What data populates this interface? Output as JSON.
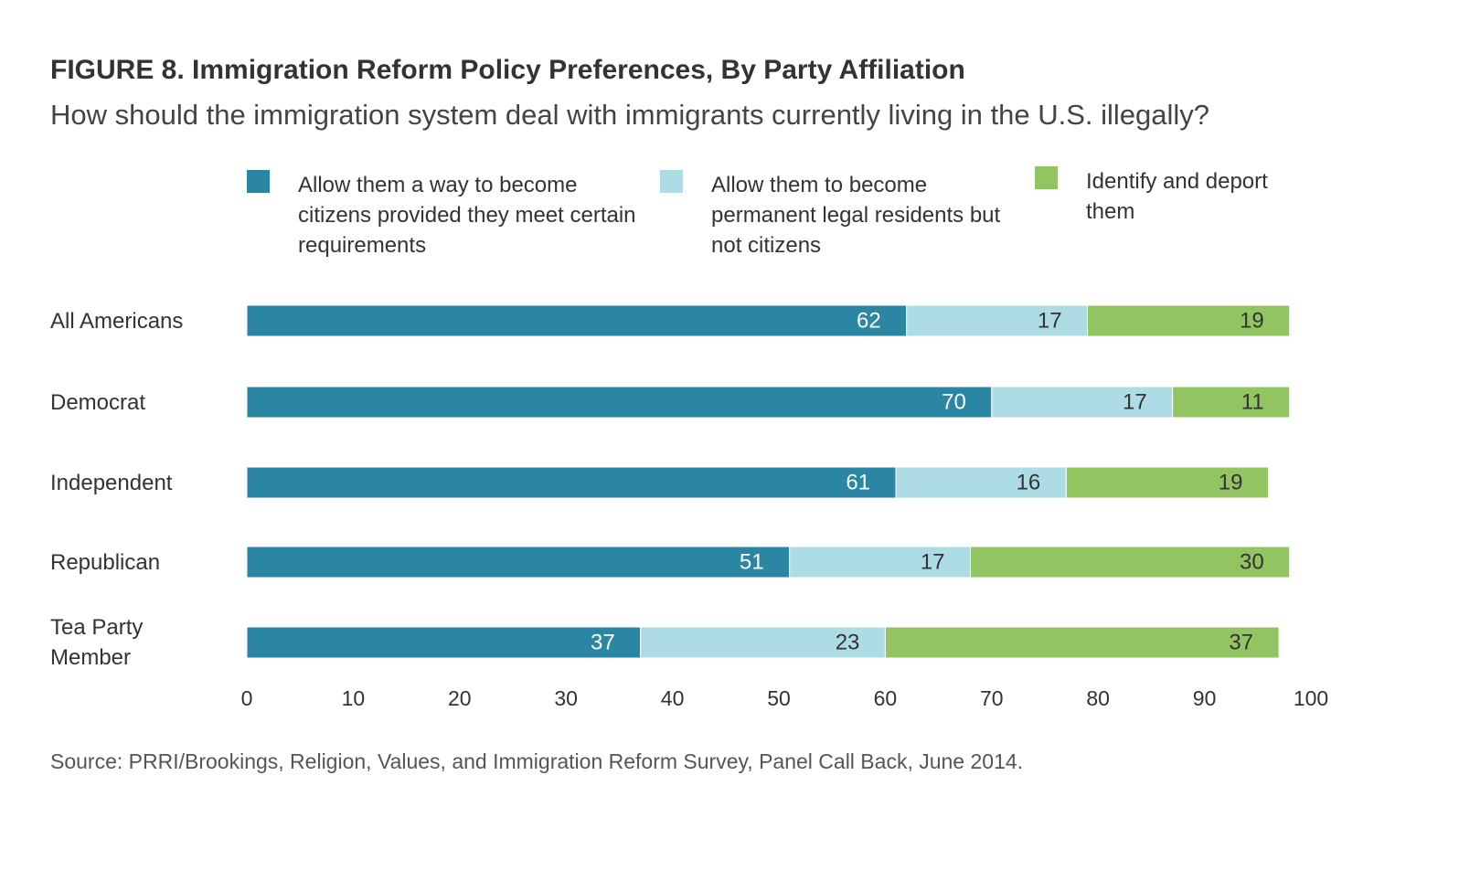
{
  "chart_data": {
    "type": "stacked-bar-horizontal",
    "title": "FIGURE 8.  Immigration Reform Policy Preferences, By Party Affiliation",
    "subtitle": "How should the immigration system deal with immigrants currently living in the U.S. illegally?",
    "source": "Source: PRRI/Brookings, Religion, Values, and Immigration Reform Survey, Panel Call Back, June 2014.",
    "categories": [
      "All Americans",
      "Democrat",
      "Independent",
      "Republican",
      "Tea Party Member"
    ],
    "series": [
      {
        "name": "Allow them a way to become citizens provided they meet certain requirements",
        "color": "#2a86a3",
        "values": [
          62,
          70,
          61,
          51,
          37
        ]
      },
      {
        "name": "Allow them to become permanent legal residents but not citizens",
        "color": "#aedce4",
        "values": [
          17,
          17,
          16,
          17,
          23
        ]
      },
      {
        "name": "Identify and deport them",
        "color": "#93c462",
        "values": [
          19,
          11,
          19,
          30,
          37
        ]
      }
    ],
    "xlim": [
      0,
      100
    ],
    "xticks": [
      0,
      10,
      20,
      30,
      40,
      50,
      60,
      70,
      80,
      90,
      100
    ]
  }
}
